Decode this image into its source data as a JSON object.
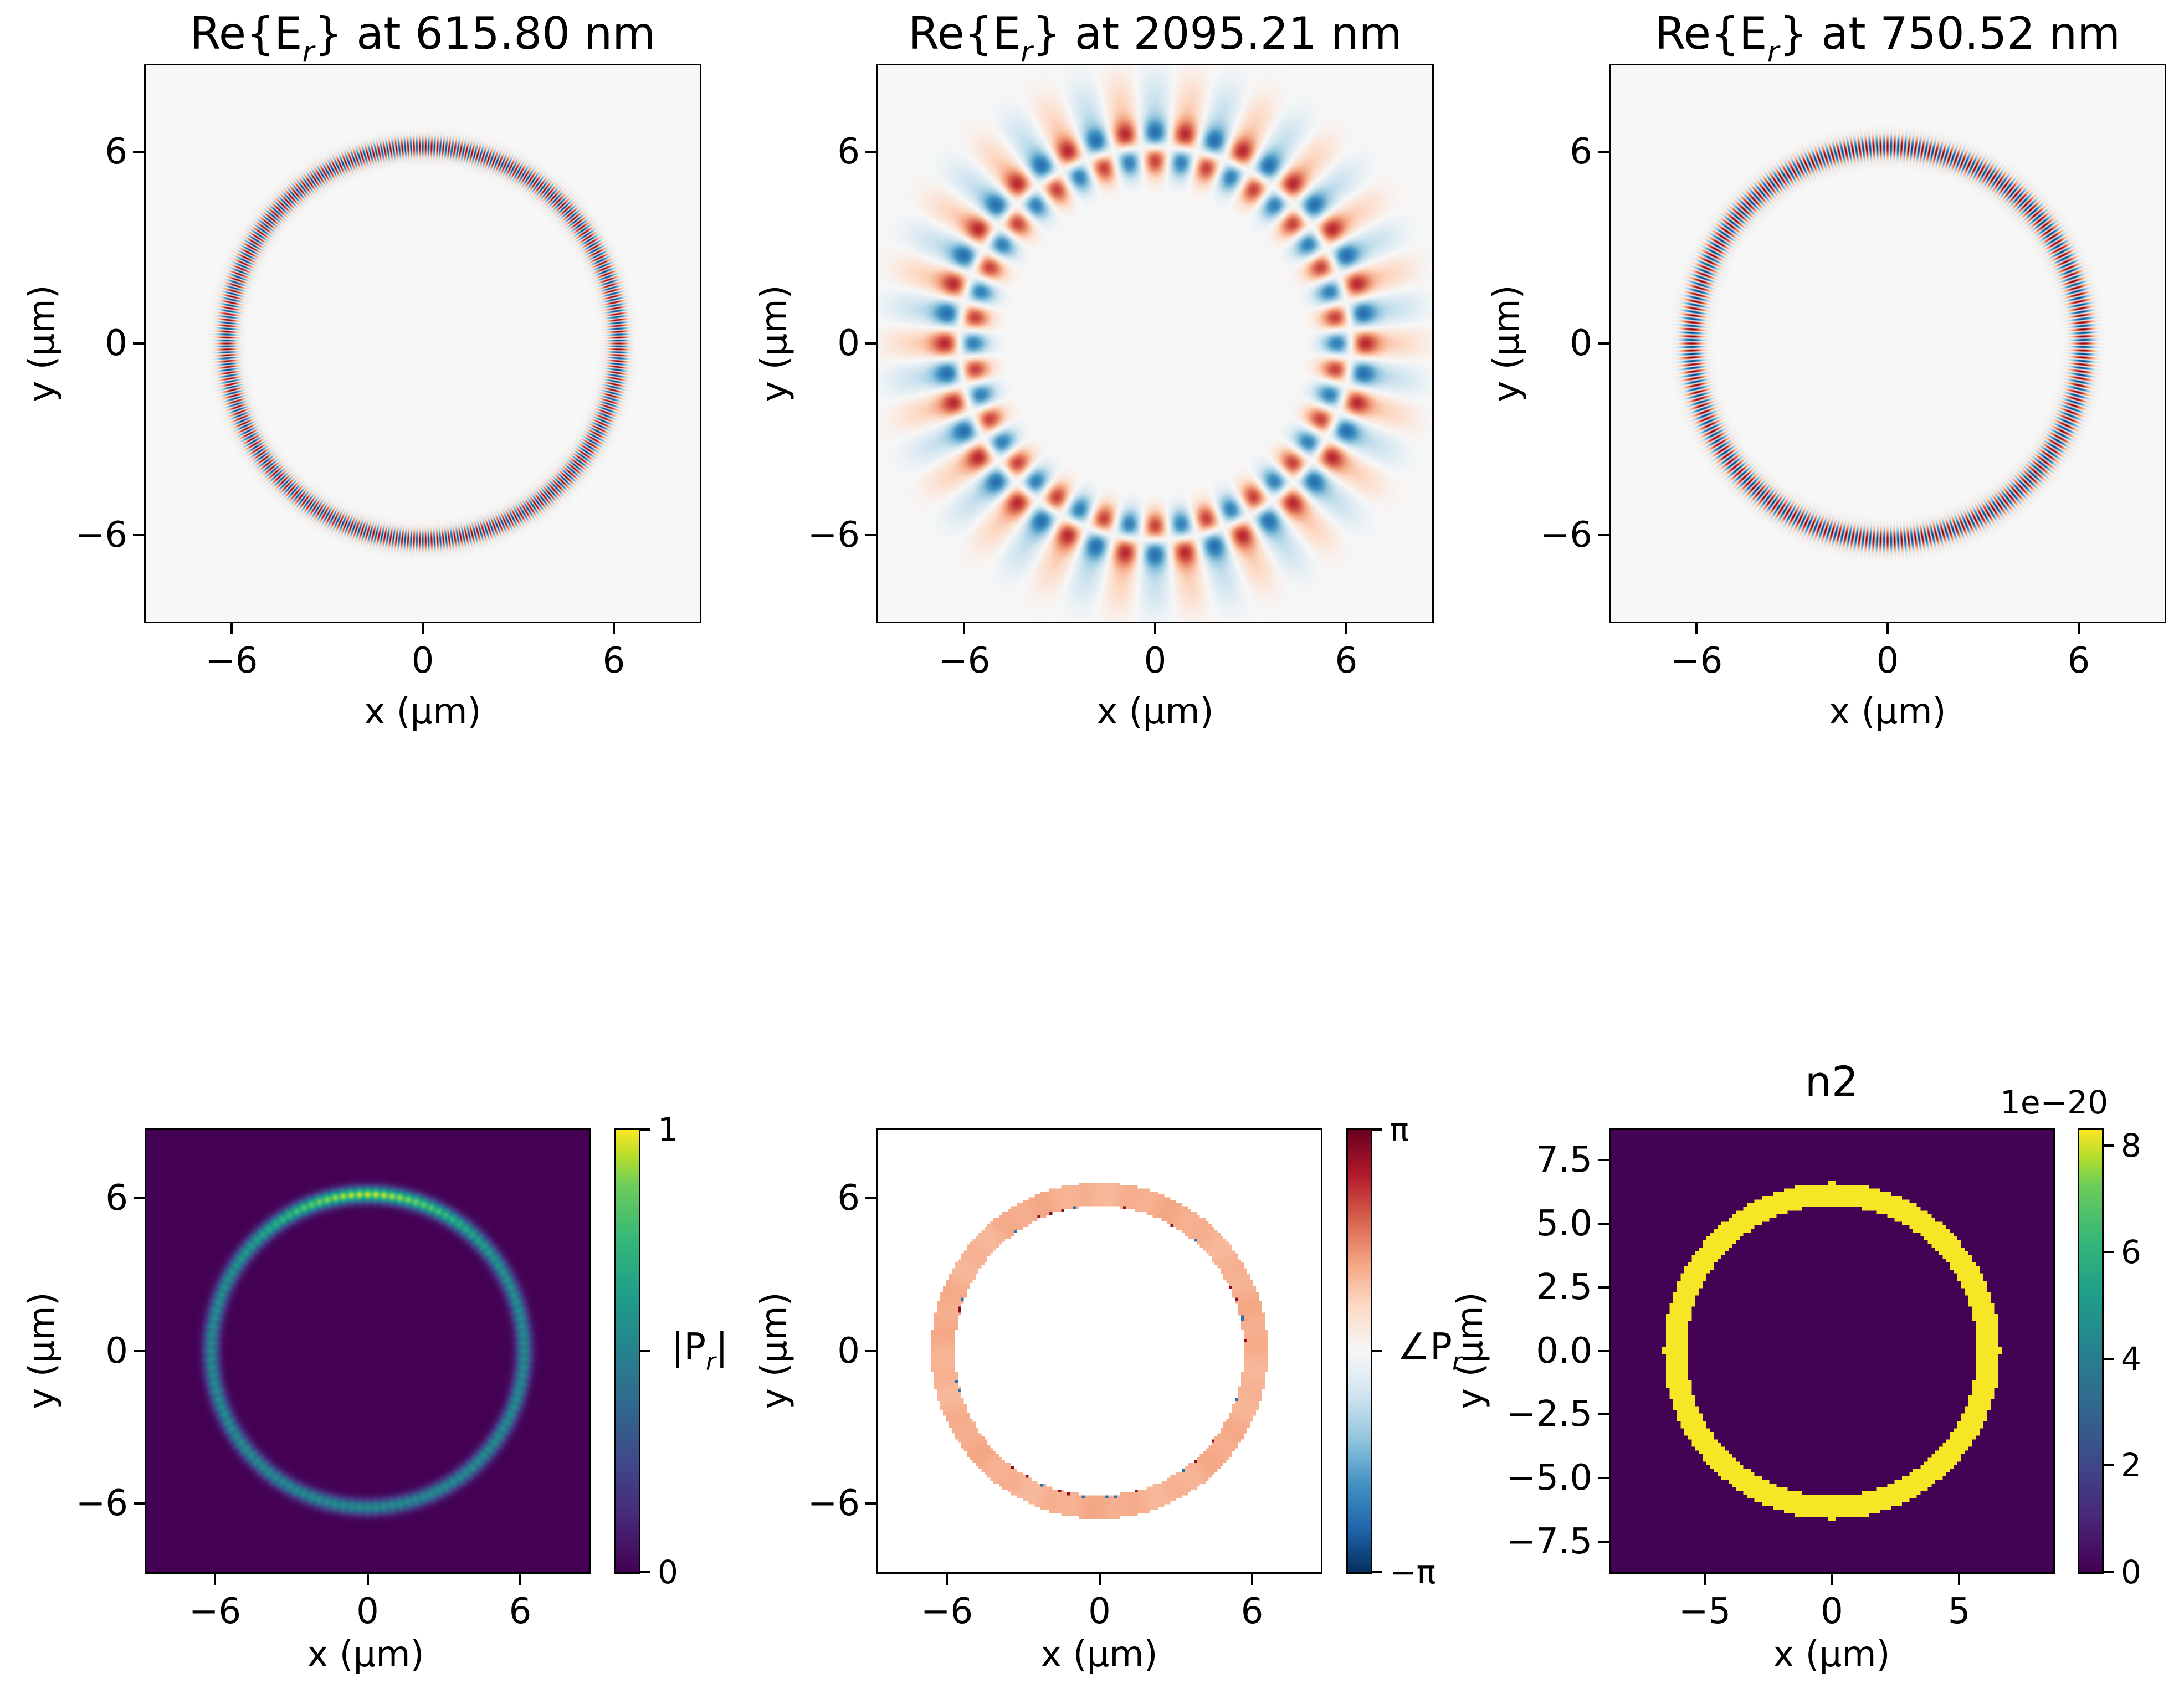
{
  "figure": {
    "background": "#ffffff",
    "description": "2x3 grid of microring resonator field heatmaps"
  },
  "chart_data": {
    "type": "heatmap",
    "layout": {
      "rows": 2,
      "cols": 3,
      "grid": true
    },
    "colors": {
      "viridis_min": "#440154",
      "viridis_max": "#fde725",
      "rdbu_neg": "#053061",
      "rdbu_mid": "#f7f7f7",
      "rdbu_pos": "#67001f",
      "phase_ring_color": "#f29a7d"
    },
    "panels": [
      {
        "id": "er-615",
        "kind": "field_ring",
        "title": {
          "pre": "Re{E",
          "sub": "r",
          "post": "} at 615.80 nm"
        },
        "wavelength_nm": 615.8,
        "xlabel": "x (μm)",
        "ylabel": "y (μm)",
        "xlim": [
          -8.7,
          8.7
        ],
        "ylim": [
          -8.7,
          8.7
        ],
        "xticks": {
          "values": [
            -6,
            0,
            6
          ],
          "labels": [
            "−6",
            "0",
            "6"
          ]
        },
        "yticks": {
          "values": [
            6,
            0,
            -6
          ],
          "labels": [
            "6",
            "0",
            "−6"
          ]
        },
        "colormap": "RdBu_r",
        "background": "#f7f7f7",
        "ring": {
          "radius_um": 6.15,
          "gaussian_width_um": 0.3,
          "azimuthal_periods": 210,
          "radial_order": 1
        },
        "value_range": [
          -1,
          1
        ]
      },
      {
        "id": "er-2095",
        "kind": "field_ring",
        "title": {
          "pre": "Re{E",
          "sub": "r",
          "post": "} at 2095.21 nm"
        },
        "wavelength_nm": 2095.21,
        "xlabel": "x (μm)",
        "ylabel": "y (μm)",
        "xlim": [
          -8.7,
          8.7
        ],
        "ylim": [
          -8.7,
          8.7
        ],
        "xticks": {
          "values": [
            -6,
            0,
            6
          ],
          "labels": [
            "−6",
            "0",
            "6"
          ]
        },
        "yticks": {
          "values": [
            6,
            0,
            -6
          ],
          "labels": [
            "6",
            "0",
            "−6"
          ]
        },
        "colormap": "RdBu_r",
        "background": "#f7f7f7",
        "ring": {
          "radius_um": 6.15,
          "gaussian_width_um": 0.62,
          "azimuthal_periods": 22,
          "radial_order": 2
        },
        "value_range": [
          -1,
          1
        ]
      },
      {
        "id": "er-750",
        "kind": "field_ring",
        "title": {
          "pre": "Re{E",
          "sub": "r",
          "post": "} at 750.52 nm"
        },
        "wavelength_nm": 750.52,
        "xlabel": "x (μm)",
        "ylabel": "y (μm)",
        "xlim": [
          -8.7,
          8.7
        ],
        "ylim": [
          -8.7,
          8.7
        ],
        "xticks": {
          "values": [
            -6,
            0,
            6
          ],
          "labels": [
            "−6",
            "0",
            "6"
          ]
        },
        "yticks": {
          "values": [
            6,
            0,
            -6
          ],
          "labels": [
            "6",
            "0",
            "−6"
          ]
        },
        "colormap": "RdBu_r",
        "background": "#f7f7f7",
        "ring": {
          "radius_um": 6.15,
          "gaussian_width_um": 0.34,
          "azimuthal_periods": 176,
          "radial_order": 1
        },
        "value_range": [
          -1,
          1
        ]
      },
      {
        "id": "pr-magnitude",
        "kind": "magnitude_ring",
        "title": null,
        "xlabel": "x (μm)",
        "ylabel": "y (μm)",
        "xlim": [
          -8.7,
          8.7
        ],
        "ylim": [
          -8.7,
          8.7
        ],
        "xticks": {
          "values": [
            -6,
            0,
            6
          ],
          "labels": [
            "−6",
            "0",
            "6"
          ]
        },
        "yticks": {
          "values": [
            6,
            0,
            -6
          ],
          "labels": [
            "6",
            "0",
            "−6"
          ]
        },
        "colormap": "viridis",
        "background": "#440154",
        "ring": {
          "radius_um": 6.15,
          "gaussian_width_um": 0.3,
          "peak_angle_deg": 90,
          "peak_value": 1.0,
          "side_value": 0.55
        },
        "value_range": [
          0,
          1
        ],
        "colorbar": {
          "colormap": "viridis",
          "vmin": 0,
          "vmax": 1,
          "ticks": [
            {
              "v": 1,
              "label": "1"
            },
            {
              "v": 0.5,
              "label": ""
            },
            {
              "v": 0,
              "label": "0"
            }
          ],
          "label": {
            "pre": "|P",
            "sub": "r",
            "post": "|"
          }
        }
      },
      {
        "id": "pr-phase",
        "kind": "phase_ring",
        "title": null,
        "xlabel": "x (μm)",
        "ylabel": "y (μm)",
        "xlim": [
          -8.7,
          8.7
        ],
        "ylim": [
          -8.7,
          8.7
        ],
        "xticks": {
          "values": [
            -6,
            0,
            6
          ],
          "labels": [
            "−6",
            "0",
            "6"
          ]
        },
        "yticks": {
          "values": [
            6,
            0,
            -6
          ],
          "labels": [
            "6",
            "0",
            "−6"
          ]
        },
        "colormap": "RdBu",
        "background": "#ffffff",
        "ring": {
          "radius_um": 6.15,
          "half_width_um": 0.46,
          "phase_value_rad": 1.13,
          "phase_fraction_of_pi": 0.36
        },
        "value_range": [
          -3.14159,
          3.14159
        ],
        "colorbar": {
          "colormap": "RdBu",
          "vmin": -1,
          "vmax": 1,
          "ticks": [
            {
              "v": 1,
              "label": "π"
            },
            {
              "v": 0,
              "label": ""
            },
            {
              "v": -1,
              "label": "−π"
            }
          ],
          "label": {
            "pre": "∠P",
            "sub": "r",
            "post": ""
          }
        }
      },
      {
        "id": "n2",
        "kind": "binary_ring",
        "title": {
          "pre": "n2",
          "sub": "",
          "post": ""
        },
        "xlabel": "x (μm)",
        "ylabel": "y (μm)",
        "xlim": [
          -8.7,
          8.7
        ],
        "ylim": [
          -8.7,
          8.7
        ],
        "xticks": {
          "values": [
            -5,
            0,
            5
          ],
          "labels": [
            "−5",
            "0",
            "5"
          ]
        },
        "yticks": {
          "values": [
            7.5,
            5.0,
            2.5,
            0.0,
            -2.5,
            -5.0,
            -7.5
          ],
          "labels": [
            "7.5",
            "5.0",
            "2.5",
            "0.0",
            "−2.5",
            "−5.0",
            "−7.5"
          ]
        },
        "colormap": "viridis",
        "background": "#440154",
        "ring": {
          "radius_um": 6.15,
          "half_width_um": 0.45,
          "ring_value": 8.2e-20,
          "background_value": 0
        },
        "value_range": [
          0,
          8.3e-20
        ],
        "colorbar": {
          "colormap": "viridis",
          "vmin": 0,
          "vmax": 8.3,
          "offset_label": "1e−20",
          "ticks": [
            {
              "v": 8,
              "label": "8"
            },
            {
              "v": 6,
              "label": "6"
            },
            {
              "v": 4,
              "label": "4"
            },
            {
              "v": 2,
              "label": "2"
            },
            {
              "v": 0,
              "label": "0"
            }
          ],
          "label": null
        }
      }
    ]
  }
}
